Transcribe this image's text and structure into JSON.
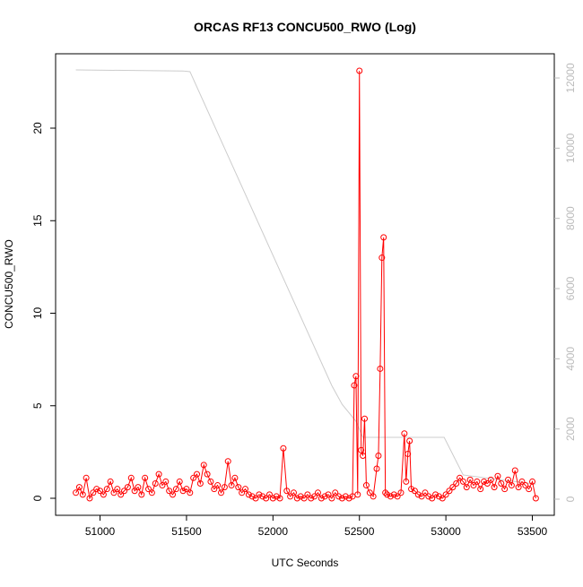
{
  "chart_data": {
    "type": "line",
    "title": "ORCAS RF13 CONCU500_RWO (Log)",
    "xlabel": "UTC Seconds",
    "ylabel": "CONCU500_RWO",
    "xlim": [
      50743,
      53627
    ],
    "xticks": [
      51000,
      51500,
      52000,
      52500,
      53000,
      53500
    ],
    "ylim": [
      -0.92,
      24.02
    ],
    "yticks": [
      0,
      5,
      10,
      15,
      20
    ],
    "y2lim": [
      -460,
      12690
    ],
    "y2ticks": [
      0,
      2000,
      4000,
      6000,
      8000,
      10000,
      12000
    ],
    "series": [
      {
        "color": "#ff0000",
        "markers": true,
        "x": [
          50860,
          50880,
          50900,
          50920,
          50940,
          50960,
          50980,
          51000,
          51020,
          51040,
          51060,
          51080,
          51100,
          51120,
          51140,
          51160,
          51180,
          51200,
          51220,
          51240,
          51260,
          51280,
          51300,
          51320,
          51340,
          51360,
          51380,
          51400,
          51420,
          51440,
          51460,
          51480,
          51500,
          51520,
          51540,
          51560,
          51580,
          51600,
          51620,
          51640,
          51660,
          51680,
          51700,
          51720,
          51740,
          51760,
          51780,
          51800,
          51820,
          51840,
          51860,
          51880,
          51900,
          51920,
          51940,
          51960,
          51980,
          52000,
          52020,
          52040,
          52060,
          52080,
          52100,
          52120,
          52140,
          52160,
          52180,
          52200,
          52220,
          52240,
          52260,
          52280,
          52300,
          52320,
          52340,
          52360,
          52380,
          52400,
          52420,
          52440,
          52460,
          52470,
          52480,
          52490,
          52500,
          52510,
          52520,
          52530,
          52540,
          52560,
          52580,
          52600,
          52610,
          52620,
          52630,
          52640,
          52650,
          52660,
          52680,
          52700,
          52720,
          52740,
          52760,
          52770,
          52780,
          52790,
          52800,
          52820,
          52840,
          52860,
          52880,
          52900,
          52920,
          52940,
          52960,
          52980,
          53000,
          53020,
          53040,
          53060,
          53080,
          53100,
          53120,
          53140,
          53160,
          53180,
          53200,
          53220,
          53240,
          53260,
          53280,
          53300,
          53320,
          53340,
          53360,
          53380,
          53400,
          53420,
          53440,
          53460,
          53480,
          53500,
          53520
        ],
        "values": [
          0.3,
          0.6,
          0.2,
          1.1,
          0.0,
          0.3,
          0.5,
          0.4,
          0.2,
          0.5,
          0.9,
          0.3,
          0.5,
          0.2,
          0.4,
          0.6,
          1.1,
          0.4,
          0.6,
          0.2,
          1.1,
          0.5,
          0.3,
          0.8,
          1.3,
          0.7,
          0.9,
          0.4,
          0.2,
          0.5,
          0.9,
          0.4,
          0.5,
          0.3,
          1.1,
          1.3,
          0.8,
          1.8,
          1.3,
          0.9,
          0.5,
          0.7,
          0.3,
          0.6,
          2.0,
          0.7,
          1.1,
          0.6,
          0.3,
          0.5,
          0.2,
          0.1,
          0.0,
          0.2,
          0.1,
          0.0,
          0.2,
          0.0,
          0.1,
          0.0,
          2.7,
          0.4,
          0.1,
          0.3,
          0.0,
          0.1,
          0.0,
          0.2,
          0.0,
          0.1,
          0.3,
          0.0,
          0.1,
          0.2,
          0.0,
          0.3,
          0.1,
          0.0,
          0.1,
          0.0,
          0.1,
          6.1,
          6.6,
          0.2,
          23.1,
          2.6,
          2.3,
          4.3,
          0.7,
          0.3,
          0.1,
          1.6,
          2.3,
          7.0,
          13.0,
          14.1,
          0.3,
          0.2,
          0.1,
          0.2,
          0.1,
          0.3,
          3.5,
          0.9,
          2.4,
          3.1,
          0.5,
          0.4,
          0.2,
          0.1,
          0.3,
          0.1,
          0.0,
          0.2,
          0.1,
          0.0,
          0.2,
          0.4,
          0.6,
          0.8,
          1.1,
          0.9,
          0.6,
          1.0,
          0.7,
          0.9,
          0.5,
          0.9,
          0.8,
          1.0,
          0.6,
          1.2,
          0.8,
          0.5,
          1.0,
          0.7,
          1.5,
          0.6,
          0.9,
          0.7,
          0.5,
          0.9,
          0.0
        ]
      },
      {
        "color": "#cccccc",
        "axis": "y2",
        "markers": false,
        "x": [
          50860,
          51480,
          51520,
          52340,
          52400,
          52480,
          52520,
          52990,
          53100,
          53300,
          53520
        ],
        "values": [
          12230,
          12200,
          12180,
          3240,
          2700,
          2220,
          1760,
          1760,
          690,
          560,
          430
        ]
      }
    ]
  }
}
